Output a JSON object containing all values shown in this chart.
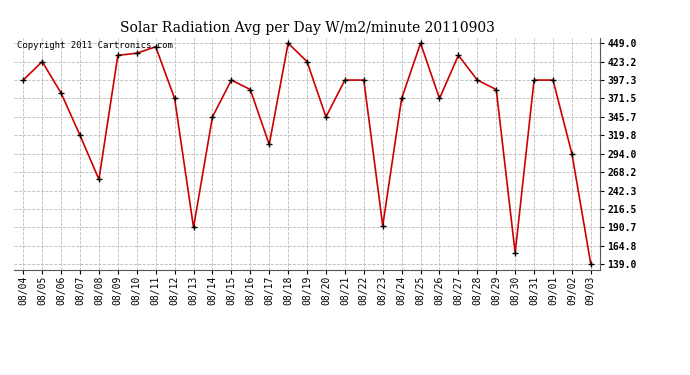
{
  "title": "Solar Radiation Avg per Day W/m2/minute 20110903",
  "copyright": "Copyright 2011 Cartronics.com",
  "dates": [
    "08/04",
    "08/05",
    "08/06",
    "08/07",
    "08/08",
    "08/09",
    "08/10",
    "08/11",
    "08/12",
    "08/13",
    "08/14",
    "08/15",
    "08/16",
    "08/17",
    "08/18",
    "08/19",
    "08/20",
    "08/21",
    "08/22",
    "08/23",
    "08/24",
    "08/25",
    "08/26",
    "08/27",
    "08/28",
    "08/29",
    "08/30",
    "08/31",
    "09/01",
    "09/02",
    "09/03"
  ],
  "values": [
    397.3,
    423.2,
    379.0,
    319.8,
    258.0,
    432.0,
    435.0,
    444.0,
    371.5,
    190.7,
    345.7,
    397.3,
    384.0,
    307.0,
    449.0,
    423.2,
    345.7,
    397.3,
    397.3,
    193.0,
    371.5,
    449.0,
    371.5,
    432.0,
    397.3,
    384.0,
    155.0,
    397.3,
    397.3,
    294.0,
    139.0
  ],
  "line_color": "#cc0000",
  "marker_color": "#000000",
  "bg_color": "#ffffff",
  "grid_color": "#bbbbbb",
  "ymin": 139.0,
  "ymax": 449.0,
  "yticks": [
    139.0,
    164.8,
    190.7,
    216.5,
    242.3,
    268.2,
    294.0,
    319.8,
    345.7,
    371.5,
    397.3,
    423.2,
    449.0
  ],
  "title_fontsize": 10,
  "tick_fontsize": 7,
  "copyright_fontsize": 6.5
}
